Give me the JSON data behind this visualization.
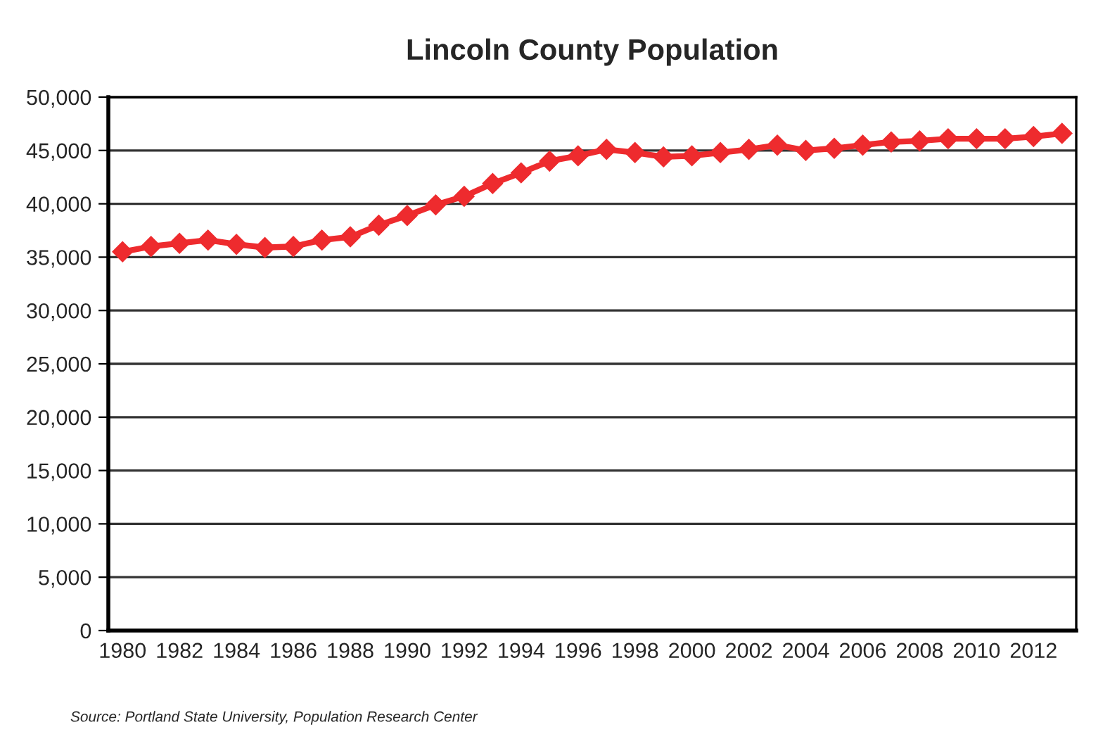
{
  "chart_data": {
    "type": "line",
    "title": "Lincoln County Population",
    "categories": [
      "1980",
      null,
      "1982",
      null,
      "1984",
      null,
      "1986",
      null,
      "1988",
      null,
      "1990",
      null,
      "1992",
      null,
      "1994",
      null,
      "1996",
      null,
      "1998",
      null,
      "2000",
      null,
      "2002",
      null,
      "2004",
      null,
      "2006",
      null,
      "2008",
      null,
      "2010",
      null,
      "2012",
      null
    ],
    "series": [
      {
        "color": "#ee2b2e",
        "values": [
          35500,
          36000,
          36300,
          36600,
          36200,
          35900,
          36000,
          36600,
          36900,
          38000,
          38900,
          39900,
          40700,
          41900,
          42900,
          44000,
          44500,
          45100,
          44800,
          44400,
          44500,
          44800,
          45100,
          45500,
          45000,
          45200,
          45500,
          45800,
          45900,
          46100,
          46100,
          46100,
          46300,
          46600
        ]
      }
    ],
    "ylim": [
      0,
      50000
    ],
    "yticks": [
      {
        "value": 0,
        "label": "0"
      },
      {
        "value": 5000,
        "label": "5,000"
      },
      {
        "value": 10000,
        "label": "10,000"
      },
      {
        "value": 15000,
        "label": "15,000"
      },
      {
        "value": 20000,
        "label": "20,000"
      },
      {
        "value": 25000,
        "label": "25,000"
      },
      {
        "value": 30000,
        "label": "30,000"
      },
      {
        "value": 35000,
        "label": "35,000"
      },
      {
        "value": 40000,
        "label": "40,000"
      },
      {
        "value": 45000,
        "label": "45,000"
      },
      {
        "value": 50000,
        "label": "50,000"
      }
    ],
    "grid": "y",
    "marker": "diamond",
    "line_style": "solid",
    "annotations": [
      "Source: Portland State University, Population Research Center"
    ]
  }
}
